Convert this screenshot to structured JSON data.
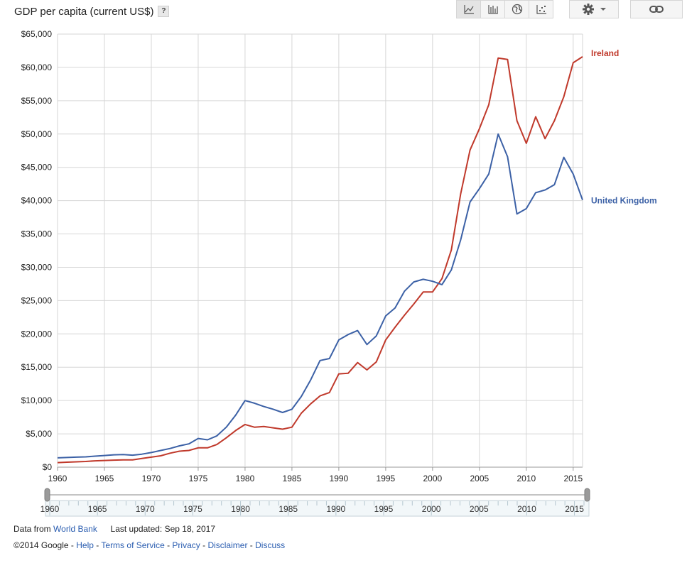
{
  "header": {
    "title": "GDP per capita (current US$)",
    "help_label": "?",
    "view_buttons": [
      {
        "icon": "line-chart-icon"
      },
      {
        "icon": "bar-chart-icon"
      },
      {
        "icon": "globe-icon"
      },
      {
        "icon": "scatter-icon"
      }
    ],
    "settings_icon": "gear-icon",
    "link_icon": "link-icon"
  },
  "chart_data": {
    "type": "line",
    "title": "GDP per capita (current US$)",
    "xlim": [
      1960,
      2016
    ],
    "ylim": [
      0,
      65000
    ],
    "x_ticks": [
      "1960",
      "1965",
      "1970",
      "1975",
      "1980",
      "1985",
      "1990",
      "1995",
      "2000",
      "2005",
      "2010",
      "2015"
    ],
    "y_ticks": [
      "$0",
      "$5,000",
      "$10,000",
      "$15,000",
      "$20,000",
      "$25,000",
      "$30,000",
      "$35,000",
      "$40,000",
      "$45,000",
      "$50,000",
      "$55,000",
      "$60,000",
      "$65,000"
    ],
    "grid": true,
    "x": [
      1960,
      1961,
      1962,
      1963,
      1964,
      1965,
      1966,
      1967,
      1968,
      1969,
      1970,
      1971,
      1972,
      1973,
      1974,
      1975,
      1976,
      1977,
      1978,
      1979,
      1980,
      1981,
      1982,
      1983,
      1984,
      1985,
      1986,
      1987,
      1988,
      1989,
      1990,
      1991,
      1992,
      1993,
      1994,
      1995,
      1996,
      1997,
      1998,
      1999,
      2000,
      2001,
      2002,
      2003,
      2004,
      2005,
      2006,
      2007,
      2008,
      2009,
      2010,
      2011,
      2012,
      2013,
      2014,
      2015,
      2016
    ],
    "series": [
      {
        "name": "Ireland",
        "color": "#c0392b",
        "values": [
          680,
          750,
          800,
          850,
          950,
          1000,
          1050,
          1100,
          1100,
          1300,
          1500,
          1700,
          2100,
          2400,
          2500,
          2900,
          2900,
          3400,
          4400,
          5500,
          6400,
          6000,
          6100,
          5900,
          5700,
          6000,
          8100,
          9500,
          10700,
          11200,
          14000,
          14100,
          15700,
          14600,
          15800,
          19100,
          21000,
          22800,
          24500,
          26300,
          26300,
          28300,
          32600,
          41000,
          47600,
          50800,
          54400,
          61400,
          61200,
          52000,
          48600,
          52600,
          49300,
          52000,
          55600,
          60700,
          61600
        ]
      },
      {
        "name": "United Kingdom",
        "color": "#3c61a6",
        "values": [
          1400,
          1450,
          1500,
          1550,
          1650,
          1750,
          1850,
          1900,
          1800,
          1950,
          2200,
          2500,
          2800,
          3200,
          3500,
          4300,
          4100,
          4700,
          6000,
          7800,
          10000,
          9600,
          9100,
          8700,
          8200,
          8700,
          10600,
          13100,
          16000,
          16300,
          19100,
          19900,
          20500,
          18400,
          19700,
          22700,
          23900,
          26400,
          27800,
          28200,
          27900,
          27400,
          29600,
          34100,
          39800,
          41800,
          44000,
          50000,
          46600,
          38000,
          38800,
          41200,
          41600,
          42400,
          46500,
          44000,
          40100
        ]
      }
    ],
    "slider_labels": [
      "1960",
      "1965",
      "1970",
      "1975",
      "1980",
      "1985",
      "1990",
      "1995",
      "2000",
      "2005",
      "2010",
      "2015"
    ]
  },
  "footer": {
    "data_from_label": "Data from",
    "source_link": "World Bank",
    "last_updated": "Last updated: Sep 18, 2017",
    "copyright": "©2014 Google",
    "sep": " - ",
    "links": [
      "Help",
      "Terms of Service",
      "Privacy",
      "Disclaimer",
      "Discuss"
    ]
  }
}
